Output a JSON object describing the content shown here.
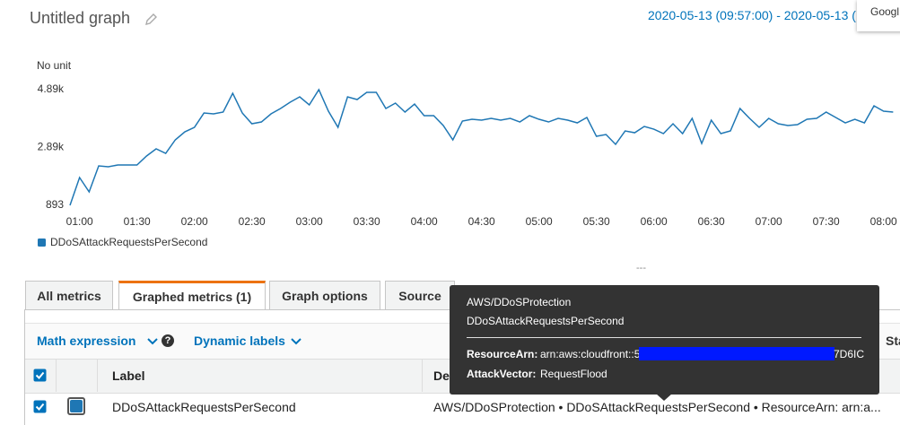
{
  "header": {
    "title": "Untitled graph",
    "time_range": "2020-05-13 (09:57:00) - 2020-05-13 (",
    "popup": "Googl"
  },
  "chart_data": {
    "type": "line",
    "y_label": "No unit",
    "categories": [
      null,
      "01:00",
      null,
      null,
      null,
      null,
      null,
      "01:30",
      null,
      null,
      null,
      null,
      null,
      "02:00",
      null,
      null,
      null,
      null,
      null,
      "02:30",
      null,
      null,
      null,
      null,
      null,
      "03:00",
      null,
      null,
      null,
      null,
      null,
      "03:30",
      null,
      null,
      null,
      null,
      null,
      "04:00",
      null,
      null,
      null,
      null,
      null,
      "04:30",
      null,
      null,
      null,
      null,
      null,
      "05:00",
      null,
      null,
      null,
      null,
      null,
      "05:30",
      null,
      null,
      null,
      null,
      null,
      "06:00",
      null,
      null,
      null,
      null,
      null,
      "06:30",
      null,
      null,
      null,
      null,
      null,
      "07:00",
      null,
      null,
      null,
      null,
      null,
      "07:30",
      null,
      null,
      null,
      null,
      null,
      "08:00",
      null
    ],
    "series": [
      {
        "name": "DDoSAttackRequestsPerSecond",
        "color": "#1f77b4",
        "values": [
          893,
          1853,
          1358,
          2256,
          2225,
          2287,
          2287,
          2287,
          2597,
          2845,
          2690,
          3155,
          3433,
          3588,
          4084,
          4053,
          4115,
          4766,
          4084,
          3712,
          3774,
          4053,
          4239,
          4456,
          4642,
          4363,
          4890,
          4146,
          3588,
          4642,
          4549,
          4796,
          4796,
          4239,
          4425,
          4115,
          4394,
          3991,
          3991,
          3650,
          3155,
          3805,
          3867,
          3836,
          3898,
          3836,
          3898,
          3774,
          3991,
          3867,
          3774,
          3898,
          3836,
          3743,
          3929,
          3278,
          3340,
          3000,
          3464,
          3402,
          3619,
          3526,
          3371,
          3712,
          3371,
          3898,
          3031,
          3836,
          3371,
          3464,
          4239,
          3898,
          3588,
          3898,
          3712,
          3650,
          3681,
          3867,
          3898,
          4115,
          3929,
          3743,
          3867,
          3743,
          4332,
          4146,
          4115
        ]
      }
    ],
    "ylim": [
      893,
      4890
    ],
    "yticks": [
      893,
      {
        "value": 2890,
        "label": "2.89k"
      },
      {
        "value": 4890,
        "label": "4.89k"
      }
    ],
    "grid": false,
    "legend": "bottom-left"
  },
  "divider": "---",
  "tabs": [
    "All metrics",
    "Graphed metrics (1)",
    "Graph options",
    "Source"
  ],
  "toolbar": {
    "math_expression": "Math expression",
    "help": "?",
    "dynamic_labels": "Dynamic labels",
    "statistic": "Sta"
  },
  "table": {
    "columns": [
      "Label",
      "De"
    ],
    "rows": [
      [
        "DDoSAttackRequestsPerSecond",
        "AWS/DDoSProtection • DDoSAttackRequestsPerSecond • ResourceArn: arn:a..."
      ]
    ]
  },
  "tooltip": {
    "namespace": "AWS/DDoSProtection",
    "metric": "DDoSAttackRequestsPerSecond",
    "dimensions": [
      {
        "key": "ResourceArn:",
        "value_start": "arn:aws:cloudfront::5",
        "value_end": "7D6IC"
      },
      {
        "key": "AttackVector:",
        "value": "RequestFlood"
      }
    ]
  }
}
